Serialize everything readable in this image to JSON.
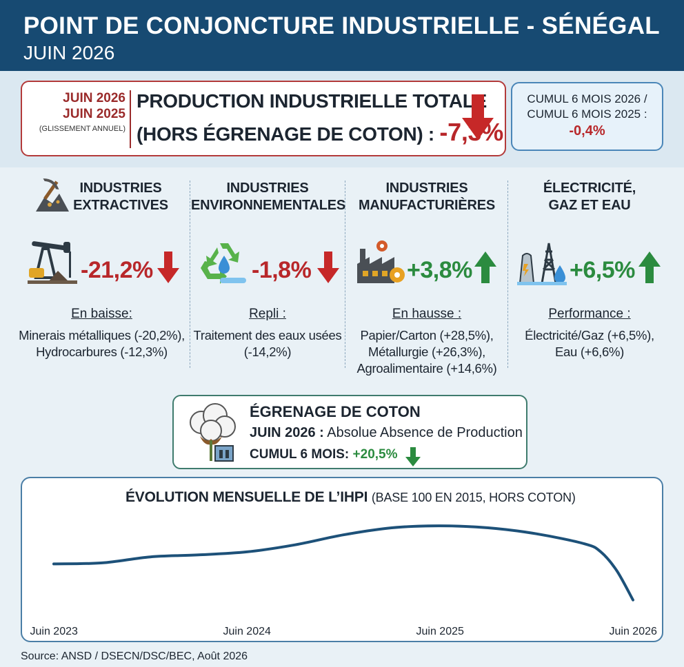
{
  "header": {
    "title": "POINT DE CONJONCTURE INDUSTRIELLE - SÉNÉGAL",
    "subtitle": "JUIN 2026"
  },
  "main": {
    "date1": "JUIN 2026",
    "date2": "JUIN 2025",
    "note": "(GLISSEMENT ANNUEL)",
    "label_line1": "PRODUCTION INDUSTRIELLE TOTALE",
    "label_line2": "(HORS ÉGRENAGE DE COTON) :",
    "value": "-7,3%",
    "trend": "down"
  },
  "cumul": {
    "line1": "CUMUL 6 MOIS 2026 /",
    "line2": "CUMUL 6 MOIS 2025 :",
    "value": "-0,4%"
  },
  "sectors": [
    {
      "title_l1": "INDUSTRIES",
      "title_l2": "EXTRACTIVES",
      "icon": "mining-icon",
      "value": "-21,2%",
      "trend": "down",
      "caption": "En baisse:",
      "details": [
        "Minerais métalliques (-20,2%),",
        "Hydrocarbures (-12,3%)"
      ]
    },
    {
      "title_l1": "INDUSTRIES",
      "title_l2": "ENVIRONNEMENTALES",
      "icon": "recycle-icon",
      "value": "-1,8%",
      "trend": "down",
      "caption": "Repli :",
      "details": [
        "Traitement des eaux usées",
        "(-14,2%)"
      ]
    },
    {
      "title_l1": "INDUSTRIES",
      "title_l2": "MANUFACTURIÈRES",
      "icon": "factory-icon",
      "value": "+3,8%",
      "trend": "up",
      "caption": "En hausse :",
      "details": [
        "Papier/Carton (+28,5%),",
        "Métallurgie (+26,3%),",
        "Agroalimentaire (+14,6%)"
      ]
    },
    {
      "title_l1": "ÉLECTRICITÉ,",
      "title_l2": "GAZ ET EAU",
      "icon": "power-tower-icon",
      "value": "+6,5%",
      "trend": "up",
      "caption": "Performance :",
      "details": [
        "Électricité/Gaz (+6,5%),",
        "Eau (+6,6%)"
      ]
    }
  ],
  "cotton": {
    "title": "ÉGRENAGE DE COTON",
    "line1_label": "JUIN 2026 :",
    "line1_text": "Absolue Absence de Production",
    "line2_label": "CUMUL 6 MOIS:",
    "line2_value": "+20,5%",
    "trend": "down"
  },
  "chart_data": {
    "type": "line",
    "title": "ÉVOLUTION MENSUELLE DE L’IHPI",
    "subtitle": "(BASE 100 EN 2015, HORS COTON)",
    "x_ticks": [
      "Juin 2023",
      "Juin 2024",
      "Juin 2025",
      "Juin 2026"
    ],
    "x": [
      0,
      3,
      6,
      9,
      12,
      15,
      18,
      21,
      24,
      27,
      30,
      33,
      34,
      35,
      36
    ],
    "values": [
      0.32,
      0.33,
      0.39,
      0.41,
      0.44,
      0.51,
      0.61,
      0.68,
      0.7,
      0.68,
      0.62,
      0.52,
      0.44,
      0.25,
      -0.04
    ],
    "grid": false,
    "legend": "none",
    "color": "#1d5179"
  },
  "source": "Source: ANSD / DSECN/DSC/BEC, Août 2026"
}
